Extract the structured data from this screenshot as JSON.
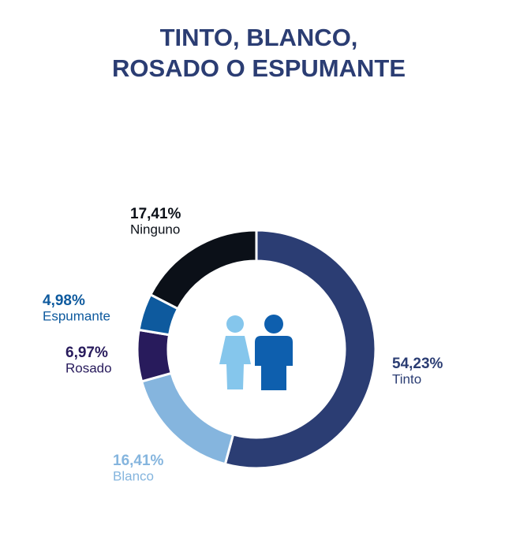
{
  "chart_data": {
    "type": "donut",
    "title": [
      "TINTO, BLANCO,",
      "ROSADO O ESPUMANTE"
    ],
    "categories": [
      "Tinto",
      "Blanco",
      "Rosado",
      "Espumante",
      "Ninguno"
    ],
    "values": [
      54.23,
      16.41,
      6.97,
      4.98,
      17.41
    ],
    "value_labels": [
      "54,23%",
      "16,41%",
      "6,97%",
      "4,98%",
      "17,41%"
    ],
    "colors": [
      "#2b3d73",
      "#85b5de",
      "#281b5c",
      "#0e5a9e",
      "#0b1018"
    ]
  }
}
